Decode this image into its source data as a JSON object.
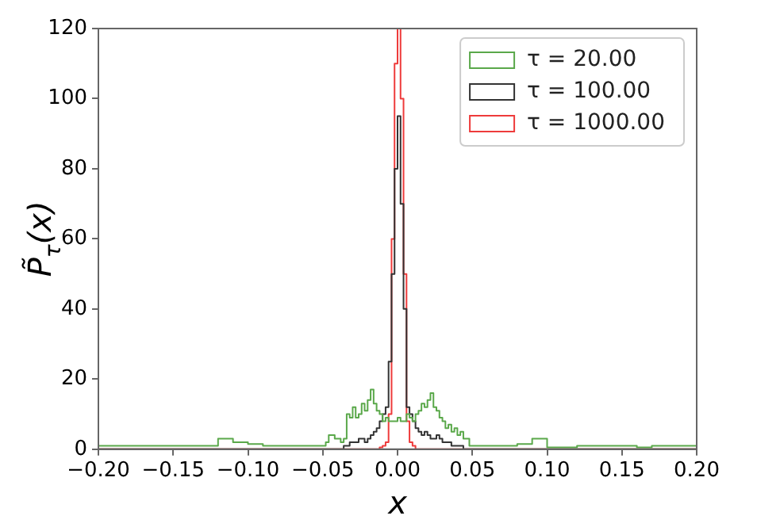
{
  "chart_data": {
    "type": "histogram",
    "xlabel": "x",
    "ylabel": "P̃$_{τ}$(x)",
    "bins": [
      -0.2,
      -0.19,
      -0.18,
      -0.17,
      -0.16,
      -0.15,
      -0.14,
      -0.13,
      -0.12,
      -0.11,
      -0.1,
      -0.09,
      -0.08,
      -0.07,
      -0.06,
      -0.05,
      -0.048,
      -0.046,
      -0.044,
      -0.042,
      -0.04,
      -0.038,
      -0.036,
      -0.034,
      -0.032,
      -0.03,
      -0.028,
      -0.026,
      -0.024,
      -0.022,
      -0.02,
      -0.018,
      -0.016,
      -0.014,
      -0.012,
      -0.01,
      -0.008,
      -0.006,
      -0.004,
      -0.002,
      0,
      0.002,
      0.004,
      0.006,
      0.008,
      0.01,
      0.012,
      0.014,
      0.016,
      0.018,
      0.02,
      0.022,
      0.024,
      0.026,
      0.028,
      0.03,
      0.032,
      0.034,
      0.036,
      0.038,
      0.04,
      0.042,
      0.044,
      0.046,
      0.048,
      0.05,
      0.06,
      0.07,
      0.08,
      0.09,
      0.1,
      0.11,
      0.12,
      0.13,
      0.14,
      0.15,
      0.16,
      0.17,
      0.18,
      0.19,
      0.2
    ],
    "series": [
      {
        "name": "τ = 20.00",
        "color": "#5aa84a",
        "values": [
          1,
          1,
          1,
          1,
          1,
          1,
          1,
          1,
          3,
          2,
          1.5,
          1,
          1,
          1,
          1,
          1,
          2,
          4,
          4,
          3,
          3,
          2,
          3,
          10,
          9,
          12,
          9,
          10,
          13,
          11,
          14,
          17,
          13,
          11,
          10,
          8,
          9,
          8,
          8,
          8,
          9,
          8,
          8,
          10,
          9,
          8,
          10,
          11,
          13,
          12,
          14,
          16,
          12,
          11,
          9,
          8,
          6,
          7,
          5,
          6,
          4,
          5,
          3,
          3,
          1,
          1,
          1,
          1,
          1.5,
          3,
          0.5,
          0.5,
          1,
          1,
          1,
          1,
          0.5,
          1,
          1,
          1
        ]
      },
      {
        "name": "τ = 100.00",
        "color": "#333333",
        "values": [
          0,
          0,
          0,
          0,
          0,
          0,
          0,
          0,
          0,
          0,
          0,
          0,
          0,
          0,
          0,
          0,
          0,
          0,
          0,
          0,
          0,
          0,
          1,
          1,
          2,
          2,
          2,
          3,
          3,
          2,
          3,
          4,
          5,
          6,
          8,
          10,
          12,
          25,
          50,
          80,
          95,
          70,
          40,
          12,
          10,
          8,
          6,
          5,
          4,
          5,
          4,
          3,
          3,
          4,
          3,
          2,
          2,
          2,
          1,
          1,
          1,
          1,
          0,
          0,
          0,
          0,
          0,
          0,
          0,
          0,
          0,
          0,
          0,
          0,
          0,
          0,
          0,
          0,
          0,
          0
        ]
      },
      {
        "name": "τ = 1000.00",
        "color": "#ee3b3b",
        "values": [
          0,
          0,
          0,
          0,
          0,
          0,
          0,
          0,
          0,
          0,
          0,
          0,
          0,
          0,
          0,
          0,
          0,
          0,
          0,
          0,
          0,
          0,
          0,
          0,
          0,
          0,
          0,
          0,
          0,
          0,
          0,
          0,
          0,
          0,
          0.5,
          1,
          2,
          10,
          60,
          110,
          120,
          100,
          50,
          8,
          2,
          1,
          0,
          0,
          0,
          0,
          0,
          0,
          0,
          0,
          0,
          0,
          0,
          0,
          0,
          0,
          0,
          0,
          0,
          0,
          0,
          0,
          0,
          0,
          0,
          0,
          0,
          0,
          0,
          0,
          0,
          0,
          0,
          0,
          0,
          0
        ]
      }
    ],
    "xlim": [
      -0.2,
      0.2
    ],
    "xticks": [
      {
        "value": -0.2,
        "label": "−0.20"
      },
      {
        "value": -0.15,
        "label": "−0.15"
      },
      {
        "value": -0.1,
        "label": "−0.10"
      },
      {
        "value": -0.05,
        "label": "−0.05"
      },
      {
        "value": 0,
        "label": "0.00"
      },
      {
        "value": 0.05,
        "label": "0.05"
      },
      {
        "value": 0.1,
        "label": "0.10"
      },
      {
        "value": 0.15,
        "label": "0.15"
      },
      {
        "value": 0.2,
        "label": "0.20"
      }
    ],
    "ylim": [
      0,
      120
    ],
    "yticks": [
      0,
      20,
      40,
      60,
      80,
      100,
      120
    ],
    "grid": false,
    "legend": "top right"
  }
}
